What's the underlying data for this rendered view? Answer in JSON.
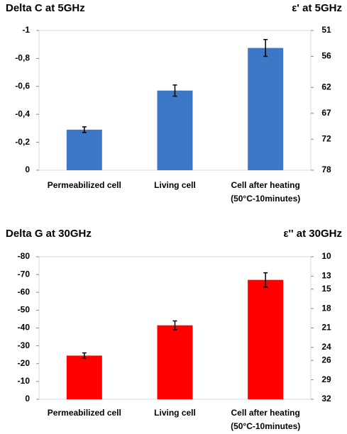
{
  "chart_data": [
    {
      "type": "bar",
      "title": "Delta C at 5GHz",
      "y2_title": "ε' at 5GHz",
      "categories": [
        "Permeabilized cell",
        "Living cell",
        [
          "Cell after heating",
          "(50°C-10minutes)"
        ]
      ],
      "values": [
        -0.29,
        -0.57,
        -0.875
      ],
      "errors": [
        0.02,
        0.04,
        0.06
      ],
      "color": "#3d78c6",
      "ylim": [
        0,
        -1
      ],
      "yticks": [
        0,
        {
          "value": -0.2,
          "label": "-0,2"
        },
        {
          "value": -0.4,
          "label": "-0,4"
        },
        {
          "value": -0.6,
          "label": "-0,6"
        },
        {
          "value": -0.8,
          "label": "-0,8"
        },
        -1
      ],
      "y2lim": [
        78,
        51
      ],
      "y2ticks": [
        78,
        72,
        67,
        62,
        56,
        51
      ],
      "grid": false
    },
    {
      "type": "bar",
      "title": "Delta G at 30GHz",
      "y2_title": "ε'' at 30GHz",
      "categories": [
        "Permeabilized cell",
        "Living cell",
        [
          "Cell after heating",
          "(50°C-10minutes)"
        ]
      ],
      "values": [
        -24.5,
        -41.5,
        -67
      ],
      "errors": [
        1.5,
        2.5,
        4
      ],
      "color": "#ff0000",
      "ylim": [
        0,
        -80
      ],
      "yticks": [
        0,
        -10,
        -20,
        -30,
        -40,
        -50,
        -60,
        -70,
        -80
      ],
      "y2lim": [
        32,
        10
      ],
      "y2ticks": [
        32,
        29,
        26,
        24,
        21,
        18,
        15,
        13,
        10
      ],
      "grid": false
    }
  ]
}
